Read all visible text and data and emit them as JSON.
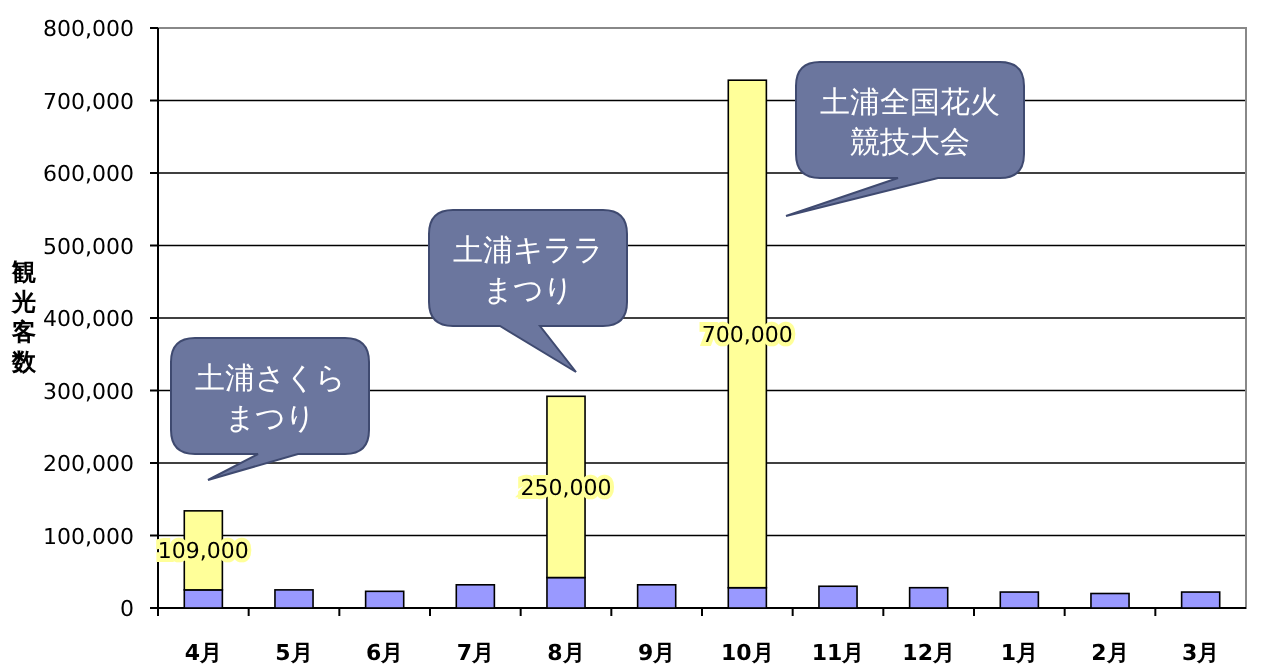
{
  "chart_data": {
    "type": "bar",
    "stacked": true,
    "ylabel": "観光客数",
    "categories": [
      "4月",
      "5月",
      "6月",
      "7月",
      "8月",
      "9月",
      "10月",
      "11月",
      "12月",
      "1月",
      "2月",
      "3月"
    ],
    "series": [
      {
        "color": "#9999ff",
        "values": [
          25000,
          25000,
          23000,
          32000,
          42000,
          32000,
          28000,
          30000,
          28000,
          22000,
          20000,
          22000
        ]
      },
      {
        "color": "#ffff99",
        "values": [
          109000,
          null,
          null,
          null,
          250000,
          null,
          700000,
          null,
          null,
          null,
          null,
          null
        ],
        "value_labels": [
          "109,000",
          null,
          null,
          null,
          "250,000",
          null,
          "700,000",
          null,
          null,
          null,
          null,
          null
        ]
      }
    ],
    "ylim": [
      0,
      800000
    ],
    "yticks": [
      {
        "value": 0,
        "label": "0"
      },
      {
        "value": 100000,
        "label": "100,000"
      },
      {
        "value": 200000,
        "label": "200,000"
      },
      {
        "value": 300000,
        "label": "300,000"
      },
      {
        "value": 400000,
        "label": "400,000"
      },
      {
        "value": 500000,
        "label": "500,000"
      },
      {
        "value": 600000,
        "label": "600,000"
      },
      {
        "value": 700000,
        "label": "700,000"
      },
      {
        "value": 800000,
        "label": "800,000"
      }
    ],
    "grid": "y",
    "annotations": [
      "土浦さくらまつり",
      "土浦キララまつり",
      "土浦全国花火競技大会"
    ]
  }
}
